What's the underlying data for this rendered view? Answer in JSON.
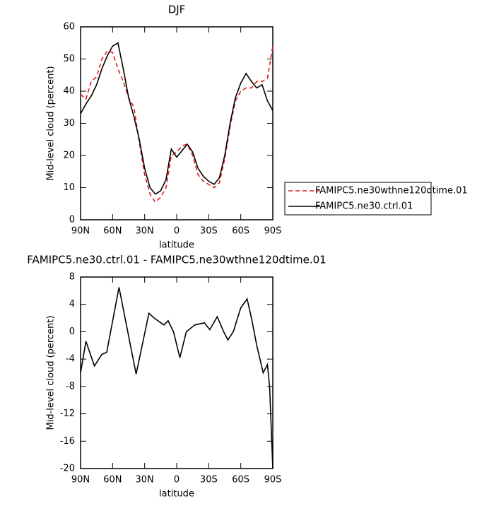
{
  "chart_data": [
    {
      "type": "line",
      "title": "DJF",
      "xlabel": "latitude",
      "ylabel": "Mid-level cloud (percent)",
      "x": [
        90,
        85,
        80,
        75,
        70,
        65,
        60,
        55,
        50,
        45,
        40,
        35,
        30,
        25,
        20,
        15,
        10,
        5,
        0,
        -5,
        -10,
        -15,
        -20,
        -25,
        -30,
        -35,
        -40,
        -45,
        -50,
        -55,
        -60,
        -65,
        -70,
        -75,
        -80,
        -85,
        -90
      ],
      "series": [
        {
          "name": "FAMIPC5.ne30wthne120dtime.01",
          "color": "#e41a1c",
          "dash": true,
          "values": [
            39,
            37.5,
            43,
            44.5,
            50,
            52.5,
            52,
            47,
            43,
            38,
            35,
            24,
            14,
            8,
            5.5,
            7,
            10,
            20,
            21,
            23,
            23.5,
            20,
            14,
            12,
            11,
            10,
            11.5,
            19,
            29,
            37,
            40,
            41,
            41,
            43,
            43,
            44,
            54
          ]
        },
        {
          "name": "FAMIPC5.ne30.ctrl.01",
          "color": "#000000",
          "dash": false,
          "values": [
            33,
            36,
            38.5,
            42,
            47,
            51,
            54,
            55,
            47,
            38,
            32,
            25,
            16,
            10,
            8,
            9,
            12.5,
            22,
            19.5,
            21.5,
            23.5,
            21,
            16,
            13.5,
            12,
            11,
            13,
            20,
            30,
            38,
            42.5,
            45.5,
            43,
            41,
            42,
            37,
            34
          ]
        }
      ],
      "xlim": [
        90,
        -90
      ],
      "xticks": [
        {
          "value": 90,
          "label": "90N"
        },
        {
          "value": 60,
          "label": "60N"
        },
        {
          "value": 30,
          "label": "30N"
        },
        0,
        {
          "value": -30,
          "label": "30S"
        },
        {
          "value": -60,
          "label": "60S"
        },
        {
          "value": -90,
          "label": "90S"
        }
      ],
      "ylim": [
        0,
        60
      ],
      "yticks": [
        0,
        10,
        20,
        30,
        40,
        50,
        60
      ],
      "legend": "outside-right"
    },
    {
      "type": "line",
      "title": "FAMIPC5.ne30.ctrl.01 - FAMIPC5.ne30wthne120dtime.01",
      "xlabel": "latitude",
      "ylabel": "Mid-level cloud (percent)",
      "x": [
        90,
        85,
        77,
        70,
        65.5,
        54,
        38,
        26,
        21,
        12,
        8,
        3,
        -3,
        -9,
        -17,
        -26,
        -31,
        -38,
        -44,
        -48,
        -53,
        -60,
        -66,
        -70,
        -75,
        -81,
        -85,
        -87,
        -90
      ],
      "series": [
        {
          "color": "#000000",
          "dash": false,
          "values": [
            -6,
            -1.4,
            -5,
            -3.3,
            -3,
            6.5,
            -6.2,
            2.7,
            2,
            1,
            1.6,
            0,
            -3.8,
            0,
            1,
            1.3,
            0.3,
            2.2,
            0,
            -1.2,
            0,
            3.5,
            4.8,
            2,
            -2,
            -6,
            -4.8,
            -8,
            -20
          ]
        }
      ],
      "xlim": [
        90,
        -90
      ],
      "xticks": [
        {
          "value": 90,
          "label": "90N"
        },
        {
          "value": 60,
          "label": "60N"
        },
        {
          "value": 30,
          "label": "30N"
        },
        0,
        {
          "value": -30,
          "label": "30S"
        },
        {
          "value": -60,
          "label": "60S"
        },
        {
          "value": -90,
          "label": "90S"
        }
      ],
      "ylim": [
        -20,
        8
      ],
      "yticks": [
        -20,
        -16,
        -12,
        -8,
        -4,
        0,
        4,
        8
      ]
    }
  ]
}
